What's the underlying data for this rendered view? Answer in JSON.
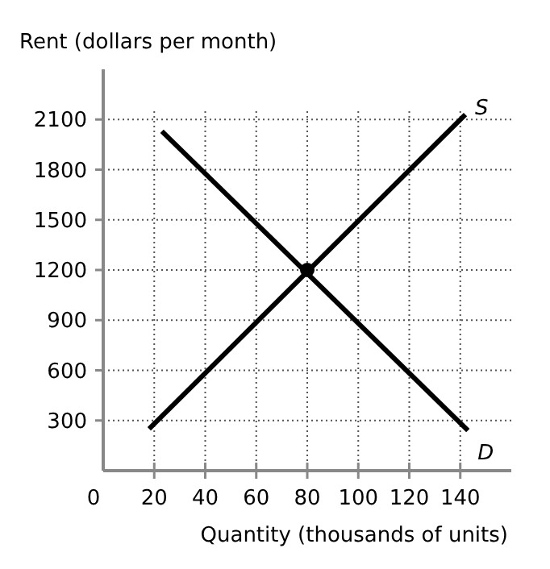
{
  "chart_data": {
    "type": "line",
    "ylabel": "Rent (dollars per month)",
    "xlabel": "Quantity (thousands of units)",
    "xlim": [
      0,
      160
    ],
    "xticks": [
      0,
      20,
      40,
      60,
      80,
      100,
      120,
      140
    ],
    "ylim": [
      0,
      2400
    ],
    "yticks": [
      300,
      600,
      900,
      1200,
      1500,
      1800,
      2100
    ],
    "grid": true,
    "marker": "none",
    "line_style": "solid",
    "series": [
      {
        "name": "S",
        "color": "#000000",
        "x": [
          18,
          142
        ],
        "values": [
          250,
          2130
        ]
      },
      {
        "name": "D",
        "color": "#000000",
        "x": [
          23,
          143
        ],
        "values": [
          2030,
          240
        ]
      },
      {
        "type": "scatter",
        "color": "#000000",
        "x": [
          80
        ],
        "values": [
          1200
        ],
        "marker": "circle"
      }
    ]
  }
}
